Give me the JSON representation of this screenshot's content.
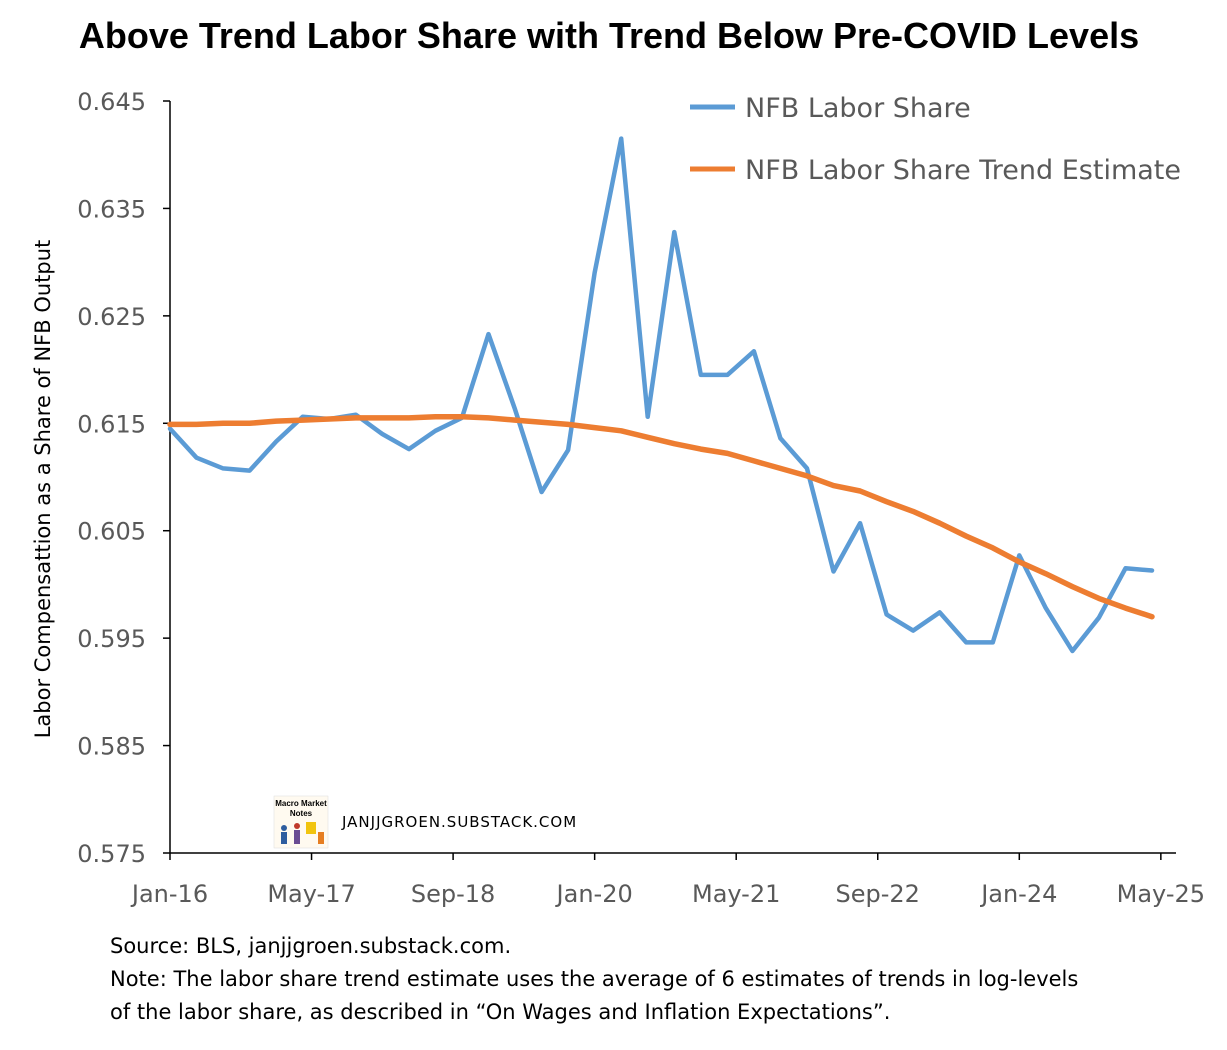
{
  "chart_data": {
    "type": "line",
    "title": "Above Trend Labor Share with Trend Below Pre-COVID Levels",
    "xlabel": "",
    "ylabel": "Labor Compensattion as a Share of NFB Output",
    "ylim": [
      0.575,
      0.645
    ],
    "yticks": [
      "0.575",
      "0.585",
      "0.595",
      "0.605",
      "0.615",
      "0.625",
      "0.635",
      "0.645"
    ],
    "xticks": [
      "Jan-16",
      "May-17",
      "Sep-18",
      "Jan-20",
      "May-21",
      "Sep-22",
      "Jan-24",
      "May-25"
    ],
    "x": [
      "2016Q1",
      "2016Q2",
      "2016Q3",
      "2016Q4",
      "2017Q1",
      "2017Q2",
      "2017Q3",
      "2017Q4",
      "2018Q1",
      "2018Q2",
      "2018Q3",
      "2018Q4",
      "2019Q1",
      "2019Q2",
      "2019Q3",
      "2019Q4",
      "2020Q1",
      "2020Q2",
      "2020Q3",
      "2020Q4",
      "2021Q1",
      "2021Q2",
      "2021Q3",
      "2021Q4",
      "2022Q1",
      "2022Q2",
      "2022Q3",
      "2022Q4",
      "2023Q1",
      "2023Q2",
      "2023Q3",
      "2023Q4",
      "2024Q1",
      "2024Q2",
      "2024Q3",
      "2024Q4",
      "2025Q1",
      "2025Q2"
    ],
    "grid": false,
    "legend_position": "top-right",
    "series": [
      {
        "name": "NFB Labor Share",
        "color": "#5B9BD5",
        "values": [
          0.6145,
          0.6118,
          0.6108,
          0.6106,
          0.6133,
          0.6156,
          0.6154,
          0.6158,
          0.614,
          0.6126,
          0.6143,
          0.6155,
          0.6233,
          0.6163,
          0.6086,
          0.6125,
          0.629,
          0.6415,
          0.6156,
          0.6328,
          0.6195,
          0.6195,
          0.6217,
          0.6136,
          0.6108,
          0.6012,
          0.6057,
          0.5972,
          0.5957,
          0.5974,
          0.5946,
          0.5946,
          0.6027,
          0.5978,
          0.5938,
          0.5969,
          0.6015,
          0.6013
        ]
      },
      {
        "name": "NFB Labor Share Trend Estimate",
        "color": "#ED7D31",
        "values": [
          0.6149,
          0.6149,
          0.615,
          0.615,
          0.6152,
          0.6153,
          0.6154,
          0.6155,
          0.6155,
          0.6155,
          0.6156,
          0.6156,
          0.6155,
          0.6153,
          0.6151,
          0.6149,
          0.6146,
          0.6143,
          0.6137,
          0.6131,
          0.6126,
          0.6122,
          0.6115,
          0.6108,
          0.6101,
          0.6092,
          0.6087,
          0.6077,
          0.6068,
          0.6057,
          0.6045,
          0.6034,
          0.6021,
          0.601,
          0.5998,
          0.5987,
          0.5978,
          0.597
        ]
      }
    ]
  },
  "watermark": {
    "logo_text": [
      "Macro Market",
      "Notes"
    ],
    "site": "JANJJGROEN.SUBSTACK.COM"
  },
  "notes": {
    "source": "Source: BLS, janjjgroen.substack.com.",
    "note_line1": "Note: The labor share trend estimate uses the average of 6 estimates of trends in log-levels",
    "note_line2": "of the labor share, as described in “On Wages and Inflation Expectations”."
  }
}
